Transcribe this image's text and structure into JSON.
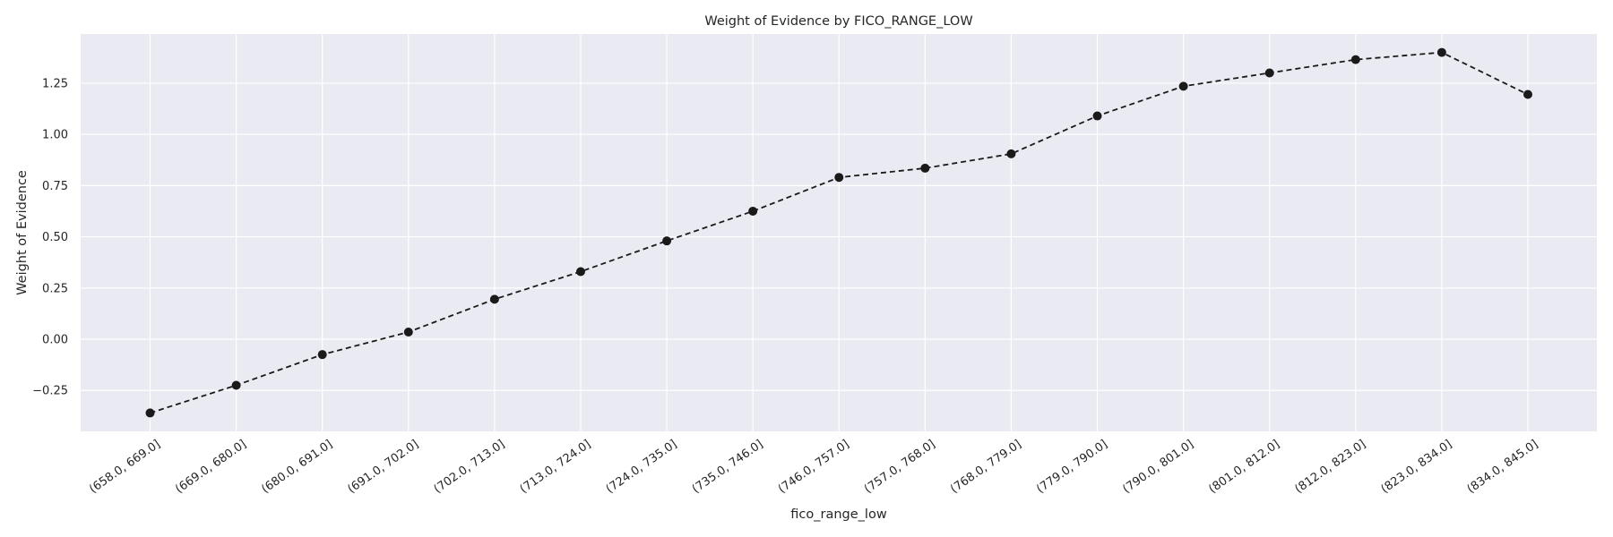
{
  "chart_data": {
    "type": "line",
    "title": "Weight of Evidence by FICO_RANGE_LOW",
    "xlabel": "fico_range_low",
    "ylabel": "Weight of Evidence",
    "categories": [
      "(658.0, 669.0]",
      "(669.0, 680.0]",
      "(680.0, 691.0]",
      "(691.0, 702.0]",
      "(702.0, 713.0]",
      "(713.0, 724.0]",
      "(724.0, 735.0]",
      "(735.0, 746.0]",
      "(746.0, 757.0]",
      "(757.0, 768.0]",
      "(768.0, 779.0]",
      "(779.0, 790.0]",
      "(790.0, 801.0]",
      "(801.0, 812.0]",
      "(812.0, 823.0]",
      "(823.0, 834.0]",
      "(834.0, 845.0]"
    ],
    "series": [
      {
        "values": [
          -0.36,
          -0.225,
          -0.075,
          0.035,
          0.195,
          0.33,
          0.48,
          0.625,
          0.79,
          0.835,
          0.905,
          1.09,
          1.235,
          1.3,
          1.365,
          1.4,
          1.195
        ]
      }
    ],
    "yticks": [
      -0.25,
      0.0,
      0.25,
      0.5,
      0.75,
      1.0,
      1.25
    ],
    "ytick_labels": [
      "−0.25",
      "0.00",
      "0.25",
      "0.50",
      "0.75",
      "1.00",
      "1.25"
    ],
    "ylim": [
      -0.45,
      1.49
    ],
    "grid": true,
    "legend": false,
    "colors": {
      "background": "#eaeaf2",
      "grid": "#ffffff",
      "line": "#1a1a1a"
    }
  }
}
